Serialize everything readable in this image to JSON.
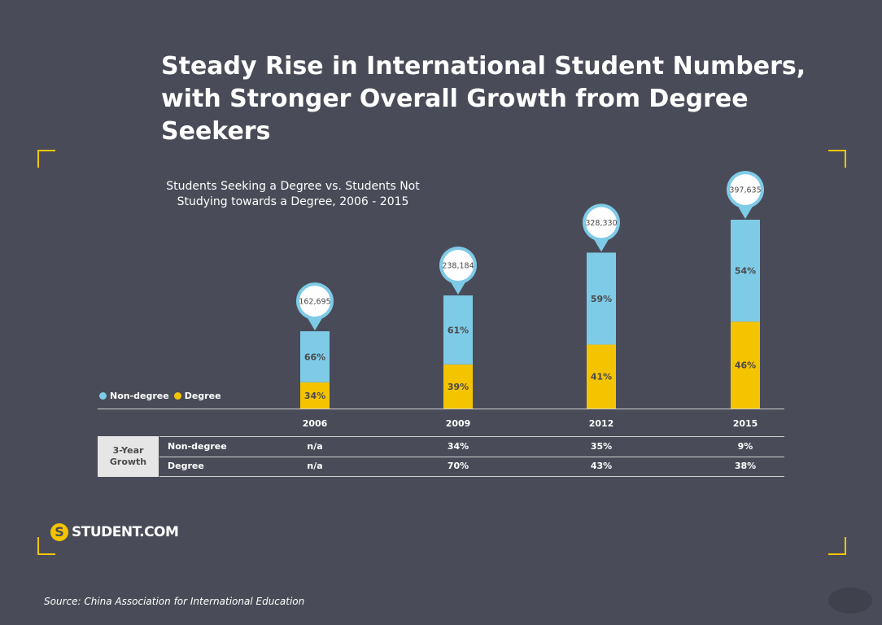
{
  "title": "Steady Rise in International Student Numbers, with Stronger Overall Growth from Degree Seekers",
  "colors": {
    "background": "#494c58",
    "non_degree": "#7ecbe8",
    "degree": "#f5c400",
    "accent": "#f5c400"
  },
  "chart_data": {
    "type": "bar",
    "stacked": true,
    "title": "Students Seeking a Degree vs. Students Not Studying towards a Degree, 2006 - 2015",
    "categories": [
      "2006",
      "2009",
      "2012",
      "2015"
    ],
    "totals": [
      162695,
      238184,
      328330,
      397635
    ],
    "total_labels": [
      "162,695",
      "238,184",
      "328,330",
      "397,635"
    ],
    "series": [
      {
        "name": "Degree",
        "color": "#f5c400",
        "percent": [
          34,
          39,
          41,
          46
        ],
        "labels": [
          "34%",
          "39%",
          "41%",
          "46%"
        ]
      },
      {
        "name": "Non-degree",
        "color": "#7ecbe8",
        "percent": [
          66,
          61,
          59,
          54
        ],
        "labels": [
          "66%",
          "61%",
          "59%",
          "54%"
        ]
      }
    ],
    "ylim": [
      0,
      397635
    ],
    "grid": false,
    "legend": "left"
  },
  "legend": {
    "non_degree": "Non-degree",
    "degree": "Degree"
  },
  "growth": {
    "header": "3-Year Growth",
    "rows": [
      {
        "label": "Non-degree",
        "values": [
          "n/a",
          "34%",
          "35%",
          "9%"
        ]
      },
      {
        "label": "Degree",
        "values": [
          "n/a",
          "70%",
          "43%",
          "38%"
        ]
      }
    ]
  },
  "logo": {
    "text": "STUDENT.COM",
    "mark": "S"
  },
  "source": "Source: China Association for International Education"
}
